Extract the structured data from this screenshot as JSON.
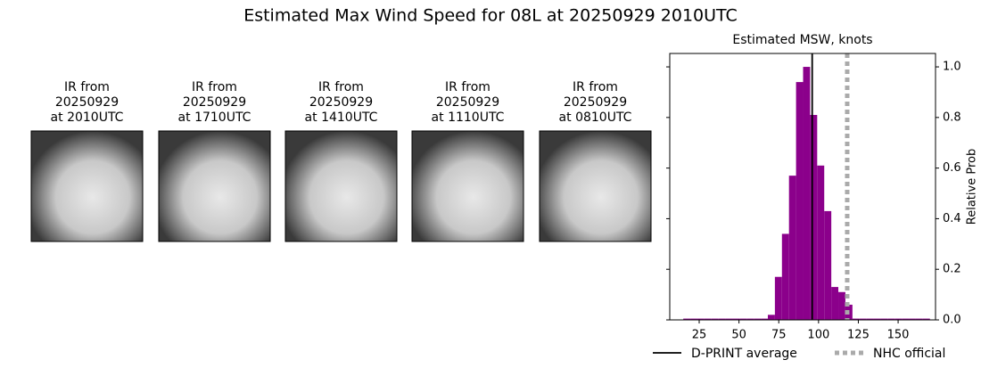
{
  "title": "Estimated Max Wind Speed for 08L at 20250929 2010UTC",
  "panels": [
    {
      "label": [
        "IR from",
        "20250929",
        "at 2010UTC"
      ]
    },
    {
      "label": [
        "IR from",
        "20250929",
        "at 1710UTC"
      ]
    },
    {
      "label": [
        "IR from",
        "20250929",
        "at 1410UTC"
      ]
    },
    {
      "label": [
        "IR from",
        "20250929",
        "at 1110UTC"
      ]
    },
    {
      "label": [
        "IR from",
        "20250929",
        "at 0810UTC"
      ]
    }
  ],
  "chart_data": {
    "type": "histogram",
    "title": "Estimated MSW, knots",
    "y_label": "Relative Prob",
    "color": "#8b008b",
    "bins": [
      15,
      19.43,
      23.86,
      28.29,
      32.71,
      37.14,
      41.57,
      46,
      50.43,
      54.86,
      59.29,
      63.71,
      68.14,
      72.57,
      77,
      81.43,
      85.86,
      90.29,
      94.71,
      99.14,
      103.57,
      108,
      112.43,
      116.86,
      121.29,
      125.71,
      130.14,
      134.57,
      139,
      143.43,
      147.86,
      152.29,
      156.71,
      161.14,
      165.57,
      170
    ],
    "values": [
      0.005,
      0.005,
      0.005,
      0.005,
      0.005,
      0.005,
      0.005,
      0.005,
      0.005,
      0.005,
      0.005,
      0.005,
      0.02,
      0.17,
      0.34,
      0.57,
      0.94,
      1.0,
      0.81,
      0.61,
      0.43,
      0.13,
      0.11,
      0.06,
      0.005,
      0.005,
      0.005,
      0.005,
      0.005,
      0.005,
      0.005,
      0.005,
      0.005,
      0.005,
      0.005
    ],
    "xlim": [
      6.5,
      173.5
    ],
    "xticks": [
      25,
      50,
      75,
      100,
      125,
      150
    ],
    "ylim": [
      0,
      1.053
    ],
    "yticks": [
      {
        "value": 0,
        "label": "0.0"
      },
      {
        "value": 0.2,
        "label": "0.2"
      },
      {
        "value": 0.4,
        "label": "0.4"
      },
      {
        "value": 0.6,
        "label": "0.6"
      },
      {
        "value": 0.8,
        "label": "0.8"
      },
      {
        "value": 1,
        "label": "1.0"
      }
    ],
    "lines": [
      {
        "name": "D-PRINT average",
        "value": 96,
        "color": "#000000",
        "dashed": false
      },
      {
        "name": "NHC official",
        "value": 118,
        "color": "#aaaaaa",
        "dashed": true
      }
    ]
  }
}
